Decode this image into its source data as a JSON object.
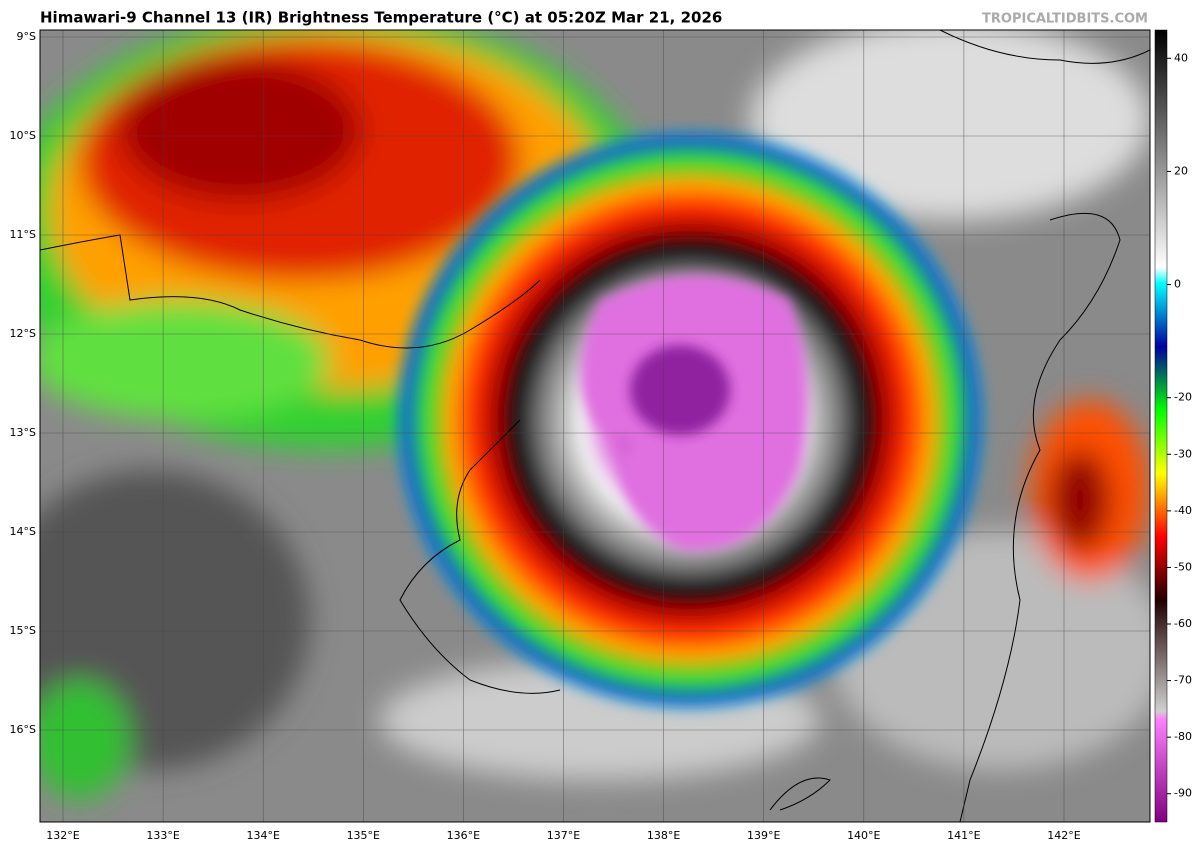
{
  "header": {
    "title": "Himawari-9 Channel 13 (IR) Brightness Temperature (°C) at 05:20Z Mar 21, 2026",
    "watermark": "TROPICALTIDBITS.COM"
  },
  "map": {
    "lat_labels": [
      "9°S",
      "10°S",
      "11°S",
      "12°S",
      "13°S",
      "14°S",
      "15°S",
      "16°S"
    ],
    "lon_labels": [
      "132°E",
      "133°E",
      "134°E",
      "135°E",
      "136°E",
      "137°E",
      "138°E",
      "139°E",
      "140°E",
      "141°E",
      "142°E"
    ]
  },
  "colorbar": {
    "range": [
      45,
      -95
    ],
    "ticks": [
      40,
      20,
      0,
      -20,
      -30,
      -40,
      -50,
      -60,
      -70,
      -80,
      -90
    ]
  }
}
